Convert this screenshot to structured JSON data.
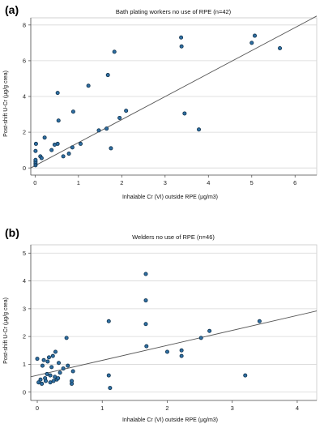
{
  "chart_data": [
    {
      "type": "scatter",
      "panel_label": "(a)",
      "title": "Bath plating workers no use of RPE (n=42)",
      "xlabel": "Inhalable Cr (VI) outside RPE (µg/m3)",
      "ylabel": "Post-shift U-Cr (µg/g crea)",
      "xlim": [
        -0.1,
        6.5
      ],
      "ylim": [
        -0.4,
        8.4
      ],
      "xticks": [
        0,
        1,
        2,
        3,
        4,
        5,
        6
      ],
      "yticks": [
        0,
        2,
        4,
        6,
        8
      ],
      "grid": "horizontal",
      "fit_line": {
        "x": [
          -0.1,
          6.5
        ],
        "y": [
          0.0,
          8.5
        ]
      },
      "series": [
        {
          "points": [
            {
              "x": 0.01,
              "y": 0.15
            },
            {
              "x": 0.01,
              "y": 0.25
            },
            {
              "x": 0.01,
              "y": 0.35
            },
            {
              "x": 0.01,
              "y": 0.45
            },
            {
              "x": 0.01,
              "y": 0.95
            },
            {
              "x": 0.02,
              "y": 1.35
            },
            {
              "x": 0.12,
              "y": 0.65
            },
            {
              "x": 0.15,
              "y": 0.55
            },
            {
              "x": 0.22,
              "y": 1.7
            },
            {
              "x": 0.38,
              "y": 1.0
            },
            {
              "x": 0.45,
              "y": 1.3
            },
            {
              "x": 0.52,
              "y": 1.35
            },
            {
              "x": 0.52,
              "y": 4.2
            },
            {
              "x": 0.54,
              "y": 2.65
            },
            {
              "x": 0.65,
              "y": 0.65
            },
            {
              "x": 0.78,
              "y": 0.8
            },
            {
              "x": 0.86,
              "y": 1.15
            },
            {
              "x": 0.88,
              "y": 3.15
            },
            {
              "x": 1.05,
              "y": 1.35
            },
            {
              "x": 1.23,
              "y": 4.6
            },
            {
              "x": 1.47,
              "y": 2.1
            },
            {
              "x": 1.65,
              "y": 2.2
            },
            {
              "x": 1.68,
              "y": 5.2
            },
            {
              "x": 1.75,
              "y": 1.1
            },
            {
              "x": 1.83,
              "y": 6.5
            },
            {
              "x": 1.95,
              "y": 2.8
            },
            {
              "x": 2.1,
              "y": 3.2
            },
            {
              "x": 3.37,
              "y": 7.3
            },
            {
              "x": 3.38,
              "y": 6.8
            },
            {
              "x": 3.45,
              "y": 3.05
            },
            {
              "x": 3.78,
              "y": 2.15
            },
            {
              "x": 5.0,
              "y": 7.0
            },
            {
              "x": 5.07,
              "y": 7.4
            },
            {
              "x": 5.65,
              "y": 6.7
            }
          ]
        }
      ]
    },
    {
      "type": "scatter",
      "panel_label": "(b)",
      "title": "Welders no use of RPE (n=46)",
      "xlabel": "Inhalable Cr (VI) outside RPE (µg/m3)",
      "ylabel": "Post-shift U-Cr (µg/g crea)",
      "xlim": [
        -0.1,
        4.3
      ],
      "ylim": [
        -0.3,
        5.3
      ],
      "xticks": [
        0,
        1,
        2,
        3,
        4
      ],
      "yticks": [
        0,
        1,
        2,
        3,
        4,
        5
      ],
      "grid": "horizontal",
      "fit_line": {
        "x": [
          -0.1,
          4.3
        ],
        "y": [
          0.55,
          2.92
        ]
      },
      "series": [
        {
          "points": [
            {
              "x": 0.0,
              "y": 1.2
            },
            {
              "x": 0.02,
              "y": 0.35
            },
            {
              "x": 0.05,
              "y": 0.45
            },
            {
              "x": 0.07,
              "y": 0.3
            },
            {
              "x": 0.08,
              "y": 0.95
            },
            {
              "x": 0.1,
              "y": 1.15
            },
            {
              "x": 0.12,
              "y": 0.5
            },
            {
              "x": 0.13,
              "y": 0.4
            },
            {
              "x": 0.15,
              "y": 0.65
            },
            {
              "x": 0.16,
              "y": 1.1
            },
            {
              "x": 0.18,
              "y": 1.25
            },
            {
              "x": 0.2,
              "y": 0.6
            },
            {
              "x": 0.2,
              "y": 0.35
            },
            {
              "x": 0.22,
              "y": 0.9
            },
            {
              "x": 0.24,
              "y": 1.3
            },
            {
              "x": 0.25,
              "y": 0.4
            },
            {
              "x": 0.27,
              "y": 0.55
            },
            {
              "x": 0.28,
              "y": 1.45
            },
            {
              "x": 0.3,
              "y": 0.45
            },
            {
              "x": 0.32,
              "y": 0.5
            },
            {
              "x": 0.33,
              "y": 1.05
            },
            {
              "x": 0.35,
              "y": 0.7
            },
            {
              "x": 0.4,
              "y": 0.85
            },
            {
              "x": 0.45,
              "y": 1.95
            },
            {
              "x": 0.47,
              "y": 0.95
            },
            {
              "x": 0.53,
              "y": 0.3
            },
            {
              "x": 0.53,
              "y": 0.4
            },
            {
              "x": 0.55,
              "y": 0.75
            },
            {
              "x": 1.1,
              "y": 2.55
            },
            {
              "x": 1.1,
              "y": 0.6
            },
            {
              "x": 1.12,
              "y": 0.15
            },
            {
              "x": 1.67,
              "y": 4.25
            },
            {
              "x": 1.67,
              "y": 3.3
            },
            {
              "x": 1.67,
              "y": 2.45
            },
            {
              "x": 1.68,
              "y": 1.65
            },
            {
              "x": 2.0,
              "y": 1.45
            },
            {
              "x": 2.22,
              "y": 1.5
            },
            {
              "x": 2.22,
              "y": 1.3
            },
            {
              "x": 2.52,
              "y": 1.95
            },
            {
              "x": 2.65,
              "y": 2.2
            },
            {
              "x": 3.2,
              "y": 0.6
            },
            {
              "x": 3.42,
              "y": 2.55
            }
          ]
        }
      ]
    }
  ]
}
